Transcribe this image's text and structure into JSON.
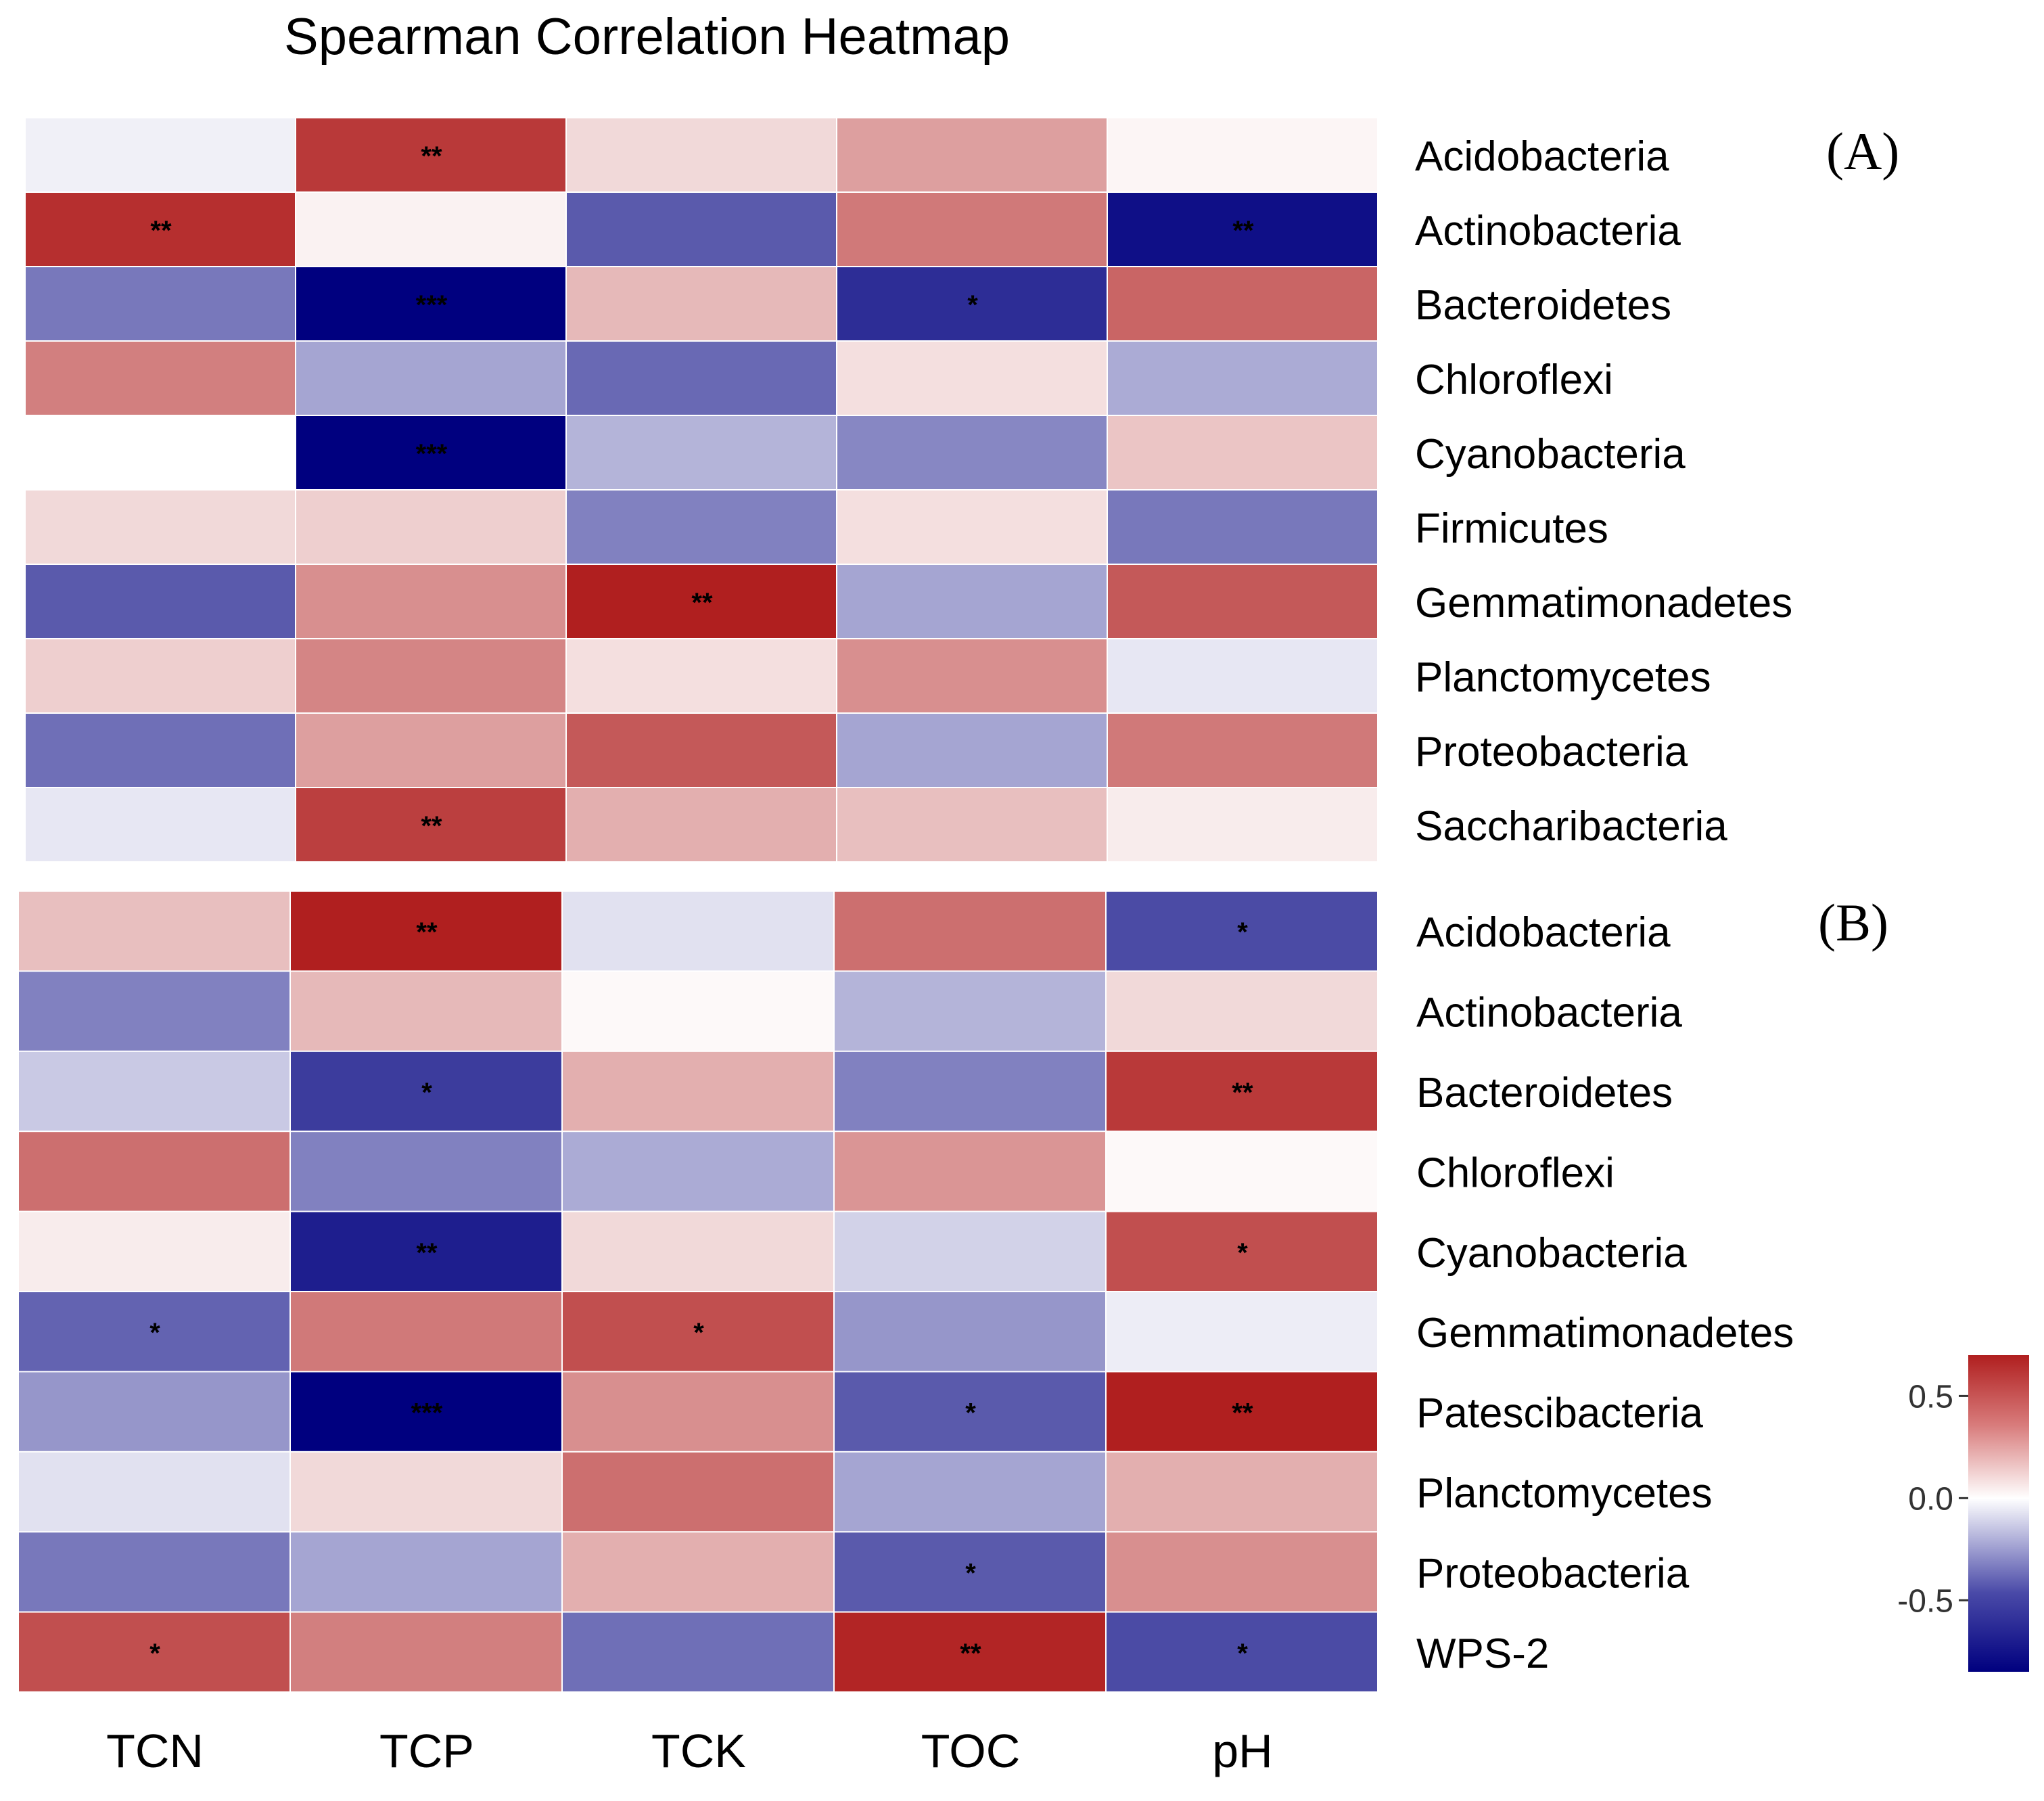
{
  "chart_data": {
    "type": "heatmap",
    "title": "Spearman Correlation Heatmap",
    "columns": [
      "TCN",
      "TCP",
      "TCK",
      "TOC",
      "pH"
    ],
    "colorbar": {
      "ticks": [
        0.5,
        0.0,
        -0.5
      ],
      "tick_labels": [
        "0.5",
        "0.0",
        "-0.5"
      ],
      "range": [
        -0.85,
        0.7
      ],
      "low_color": "#00007f",
      "mid_color": "#ffffff",
      "high_color": "#b01f1f"
    },
    "panels": [
      {
        "label": "(A)",
        "rows": [
          "Acidobacteria",
          "Actinobacteria",
          "Bacteroidetes",
          "Chloroflexi",
          "Cyanobacteria",
          "Firmicutes",
          "Gemmatimonadetes",
          "Planctomycetes",
          "Proteobacteria",
          "Saccharibacteria"
        ],
        "values": [
          [
            -0.05,
            0.62,
            0.12,
            0.3,
            0.03
          ],
          [
            0.65,
            0.04,
            -0.55,
            0.42,
            -0.8
          ],
          [
            -0.45,
            -0.85,
            0.22,
            -0.7,
            0.48
          ],
          [
            0.4,
            -0.3,
            -0.5,
            0.1,
            -0.28
          ],
          [
            0.0,
            -0.85,
            -0.25,
            -0.4,
            0.18
          ],
          [
            0.12,
            0.15,
            -0.42,
            0.1,
            -0.45
          ],
          [
            -0.55,
            0.35,
            0.7,
            -0.3,
            0.52
          ],
          [
            0.15,
            0.38,
            0.1,
            0.35,
            -0.08
          ],
          [
            -0.48,
            0.3,
            0.52,
            -0.3,
            0.42
          ],
          [
            -0.08,
            0.6,
            0.25,
            0.2,
            0.06
          ]
        ],
        "significance": [
          [
            "",
            "**",
            "",
            "",
            ""
          ],
          [
            "**",
            "",
            "",
            "",
            "**"
          ],
          [
            "",
            "***",
            "",
            "*",
            ""
          ],
          [
            "",
            "",
            "",
            "",
            ""
          ],
          [
            "",
            "***",
            "",
            "",
            ""
          ],
          [
            "",
            "",
            "",
            "",
            ""
          ],
          [
            "",
            "",
            "**",
            "",
            ""
          ],
          [
            "",
            "",
            "",
            "",
            ""
          ],
          [
            "",
            "",
            "",
            "",
            ""
          ],
          [
            "",
            "**",
            "",
            "",
            ""
          ]
        ]
      },
      {
        "label": "(B)",
        "rows": [
          "Acidobacteria",
          "Actinobacteria",
          "Bacteroidetes",
          "Chloroflexi",
          "Cyanobacteria",
          "Gemmatimonadetes",
          "Patescibacteria",
          "Planctomycetes",
          "Proteobacteria",
          "WPS-2"
        ],
        "values": [
          [
            0.2,
            0.7,
            -0.1,
            0.45,
            -0.6
          ],
          [
            -0.42,
            0.22,
            0.02,
            -0.25,
            0.12
          ],
          [
            -0.18,
            -0.65,
            0.25,
            -0.42,
            0.62
          ],
          [
            0.45,
            -0.42,
            -0.28,
            0.33,
            0.02
          ],
          [
            0.06,
            -0.75,
            0.12,
            -0.15,
            0.55
          ],
          [
            -0.52,
            0.42,
            0.55,
            -0.35,
            -0.06
          ],
          [
            -0.35,
            -0.85,
            0.35,
            -0.55,
            0.7
          ],
          [
            -0.1,
            0.12,
            0.45,
            -0.3,
            0.25
          ],
          [
            -0.45,
            -0.3,
            0.25,
            -0.55,
            0.35
          ],
          [
            0.55,
            0.4,
            -0.48,
            0.68,
            -0.6
          ]
        ],
        "significance": [
          [
            "",
            "**",
            "",
            "",
            "*"
          ],
          [
            "",
            "",
            "",
            "",
            ""
          ],
          [
            "",
            "*",
            "",
            "",
            "**"
          ],
          [
            "",
            "",
            "",
            "",
            ""
          ],
          [
            "",
            "**",
            "",
            "",
            "*"
          ],
          [
            "*",
            "",
            "*",
            "",
            ""
          ],
          [
            "",
            "***",
            "",
            "*",
            "**"
          ],
          [
            "",
            "",
            "",
            "",
            ""
          ],
          [
            "",
            "",
            "",
            "*",
            ""
          ],
          [
            "*",
            "",
            "",
            "**",
            "*"
          ]
        ]
      }
    ]
  }
}
